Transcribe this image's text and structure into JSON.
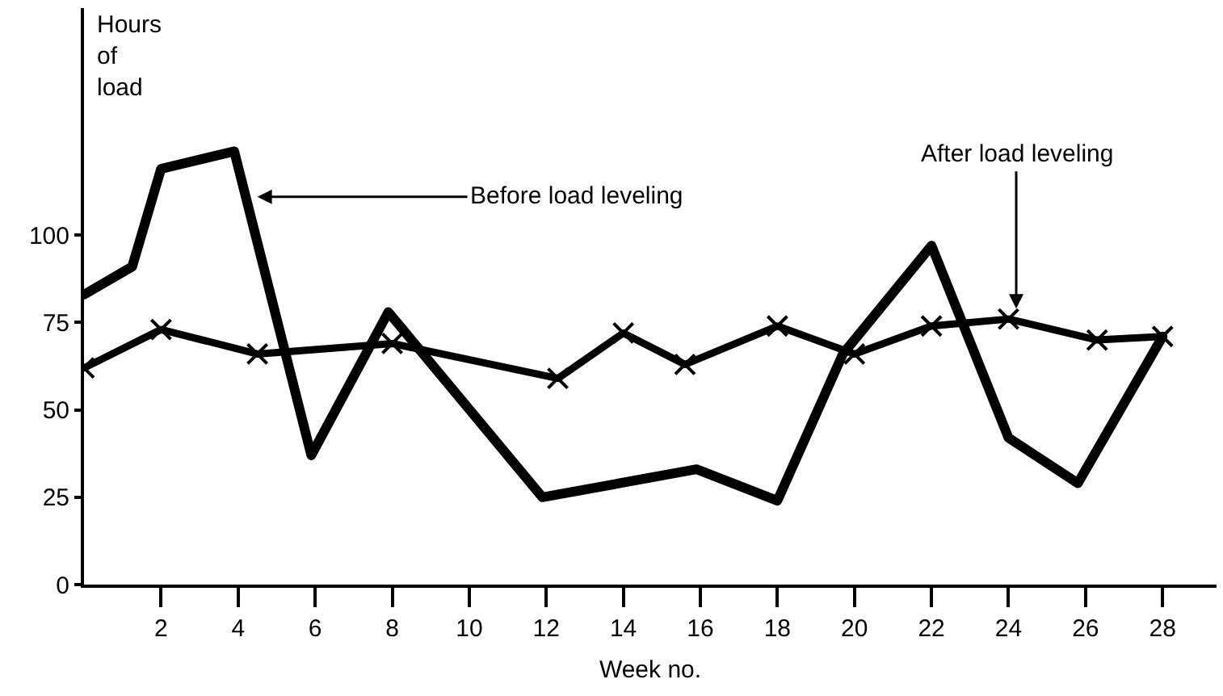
{
  "chart_data": {
    "type": "line",
    "xlabel": "Week no.",
    "ylabel": "Hours of load",
    "series": [
      {
        "color": "#000000",
        "x": [
          0,
          1.25,
          2,
          3.9,
          5.9,
          7.9,
          11.9,
          15.9,
          18,
          19.7,
          22,
          24,
          25.8,
          28
        ],
        "values": [
          83,
          91,
          119,
          124,
          37,
          78,
          25,
          33,
          24,
          66,
          97,
          42,
          29,
          71
        ],
        "marker": "none"
      },
      {
        "color": "#000000",
        "x": [
          0,
          2,
          4.5,
          8,
          12.3,
          14,
          15.6,
          18,
          20,
          22,
          24,
          26.3,
          28
        ],
        "values": [
          62,
          73,
          66,
          69,
          59,
          72,
          63,
          74,
          66,
          74,
          76,
          70,
          71
        ],
        "marker": "cross"
      }
    ],
    "annotations": [
      {
        "text": "Before load leveling",
        "x": 4.5,
        "y": 111
      },
      {
        "text": "After load leveling",
        "x": 24.2,
        "y": 79
      }
    ],
    "xlim": [
      0,
      29.4
    ],
    "xticks": [
      2,
      4,
      6,
      8,
      10,
      12,
      14,
      16,
      18,
      20,
      22,
      24,
      26,
      28
    ],
    "ylim": [
      0,
      165
    ],
    "yticks": [
      0,
      25,
      50,
      75,
      100
    ]
  }
}
